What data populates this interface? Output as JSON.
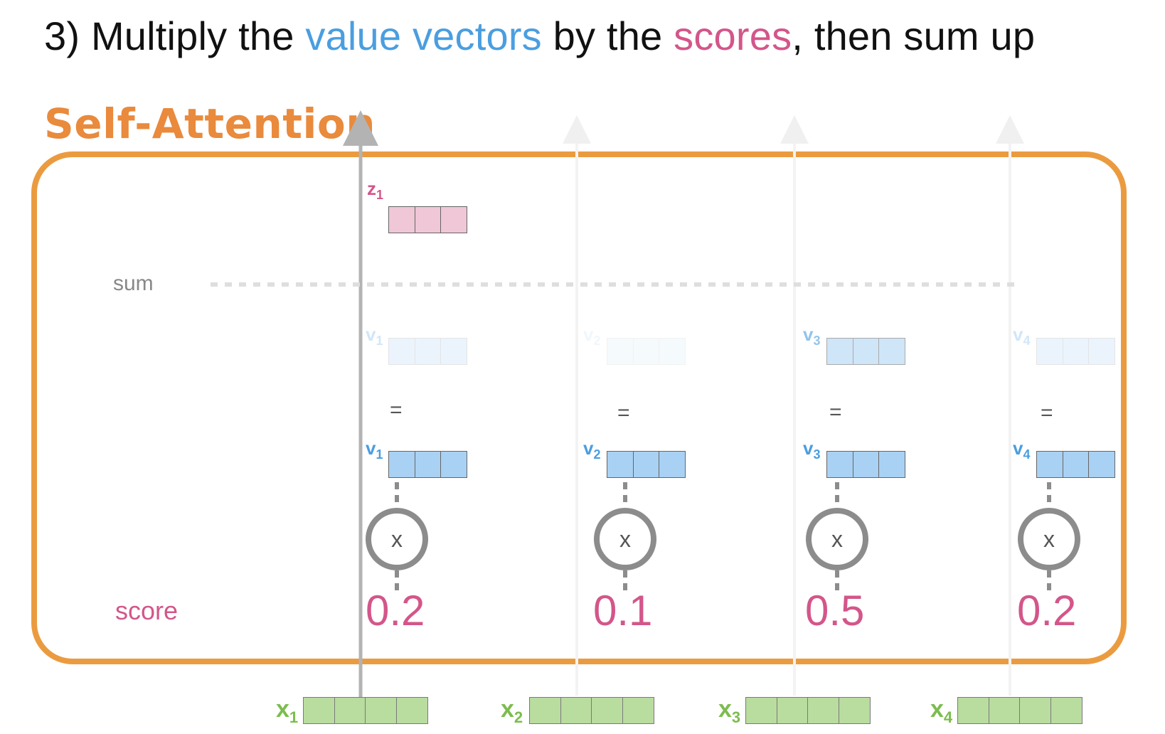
{
  "title": {
    "prefix": "3) Multiply the ",
    "highlight1": "value vectors",
    "middle": " by the ",
    "highlight2": "scores",
    "suffix": ", then sum up"
  },
  "module_label": "Self-Attention",
  "row_labels": {
    "sum": "sum",
    "score": "score"
  },
  "output": {
    "label": "z",
    "index": "1"
  },
  "equals": "=",
  "multiply": "x",
  "columns": [
    {
      "weighted_label": "v",
      "weighted_index": "1",
      "value_label": "v",
      "value_index": "1",
      "score": "0.2",
      "input_label": "x",
      "input_index": "1"
    },
    {
      "weighted_label": "v",
      "weighted_index": "2",
      "value_label": "v",
      "value_index": "2",
      "score": "0.1",
      "input_label": "x",
      "input_index": "2"
    },
    {
      "weighted_label": "v",
      "weighted_index": "3",
      "value_label": "v",
      "value_index": "3",
      "score": "0.5",
      "input_label": "x",
      "input_index": "3"
    },
    {
      "weighted_label": "v",
      "weighted_index": "4",
      "value_label": "v",
      "value_index": "4",
      "score": "0.2",
      "input_label": "x",
      "input_index": "4"
    }
  ],
  "colors": {
    "title_blue": "#4a9ee0",
    "title_pink": "#d3568a",
    "frame_orange": "#eb9b3f",
    "value_vector": "#a9d1f3",
    "output_vector": "#efc7d7",
    "input_vector": "#b9dc9f",
    "score_pink": "#d3568a"
  }
}
